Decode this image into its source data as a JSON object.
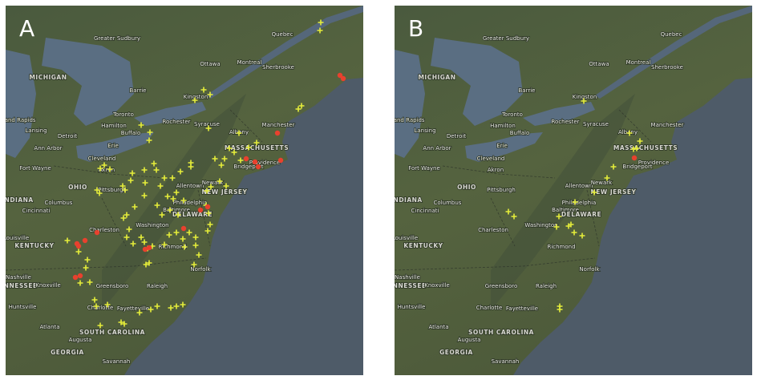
{
  "panels": [
    {
      "label": "A"
    },
    {
      "label": "B"
    }
  ],
  "map_labels": [
    "Greater Sudbury",
    "Ottawa",
    "Montreal",
    "Quebec",
    "Sherbrooke",
    "Barrie",
    "Kingston",
    "MICHIGAN",
    "Grand Rapids",
    "Lansing",
    "Detroit",
    "Ann Arbor",
    "Toronto",
    "Hamilton",
    "Rochester",
    "Syracuse",
    "Buffalo",
    "Erie",
    "Albany",
    "Manchester",
    "MASSACHUSETTS",
    "Providence",
    "Bridgeport",
    "Fort Wayne",
    "Cleveland",
    "Akron",
    "OHIO",
    "Pittsburgh",
    "Columbus",
    "INDIANA",
    "Cincinnati",
    "Allentown",
    "Newark",
    "NEW JERSEY",
    "Philadelphia",
    "Baltimore",
    "DELAWARE",
    "Washington",
    "Charleston",
    "Louisville",
    "KENTUCKY",
    "Richmond",
    "Norfolk",
    "Nashville",
    "TENNESSEE",
    "Knoxville",
    "Greensboro",
    "Raleigh",
    "Huntsville",
    "Charlotte",
    "Fayetteville",
    "Atlanta",
    "SOUTH CAROLINA",
    "Augusta",
    "GEORGIA",
    "Savannah"
  ]
}
